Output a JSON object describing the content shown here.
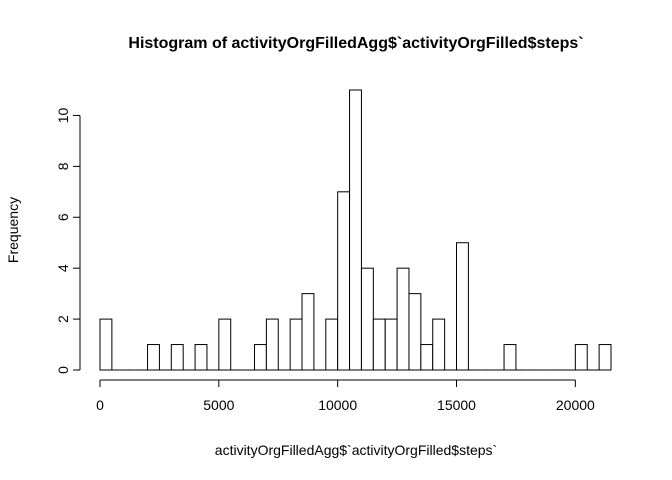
{
  "chart_data": {
    "type": "bar",
    "title": "Histogram of activityOrgFilledAgg$`activityOrgFilled$steps`",
    "xlabel": "activityOrgFilledAgg$`activityOrgFilled$steps`",
    "ylabel": "Frequency",
    "bin_start": 0,
    "bin_width": 500,
    "values": [
      2,
      0,
      0,
      0,
      1,
      0,
      1,
      0,
      1,
      0,
      2,
      0,
      0,
      1,
      2,
      0,
      2,
      3,
      0,
      2,
      7,
      11,
      4,
      2,
      2,
      4,
      3,
      1,
      2,
      0,
      5,
      0,
      0,
      0,
      1,
      0,
      0,
      0,
      0,
      0,
      1,
      0,
      1
    ],
    "xlim": [
      0,
      21500
    ],
    "ylim": [
      0,
      11
    ],
    "x_ticks": [
      0,
      5000,
      10000,
      15000,
      20000
    ],
    "y_ticks": [
      0,
      2,
      4,
      6,
      8,
      10
    ],
    "grid": false,
    "colors": {
      "bar_fill": "#ffffff",
      "bar_stroke": "#000000"
    }
  }
}
